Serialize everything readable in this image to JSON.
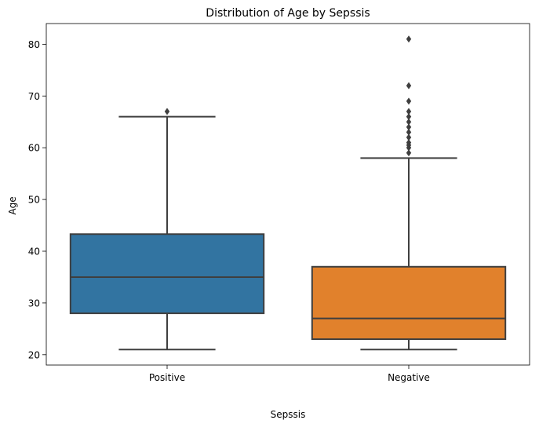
{
  "chart_data": {
    "type": "box",
    "title": "Distribution of Age by Sepssis",
    "xlabel": "Sepssis",
    "ylabel": "Age",
    "ylim": [
      18,
      84
    ],
    "yticks": [
      20,
      30,
      40,
      50,
      60,
      70,
      80
    ],
    "grid": false,
    "categories": [
      "Positive",
      "Negative"
    ],
    "boxes": [
      {
        "category": "Positive",
        "color": "#3274a1",
        "whisker_low": 21,
        "q1": 28,
        "median": 35,
        "q3": 43.3,
        "whisker_high": 66,
        "outliers": [
          67
        ]
      },
      {
        "category": "Negative",
        "color": "#e1812c",
        "whisker_low": 21,
        "q1": 23,
        "median": 27,
        "q3": 37,
        "whisker_high": 58,
        "outliers": [
          59,
          60,
          60.5,
          61,
          62,
          63,
          64,
          65,
          66,
          67,
          69,
          72,
          81
        ]
      }
    ]
  }
}
